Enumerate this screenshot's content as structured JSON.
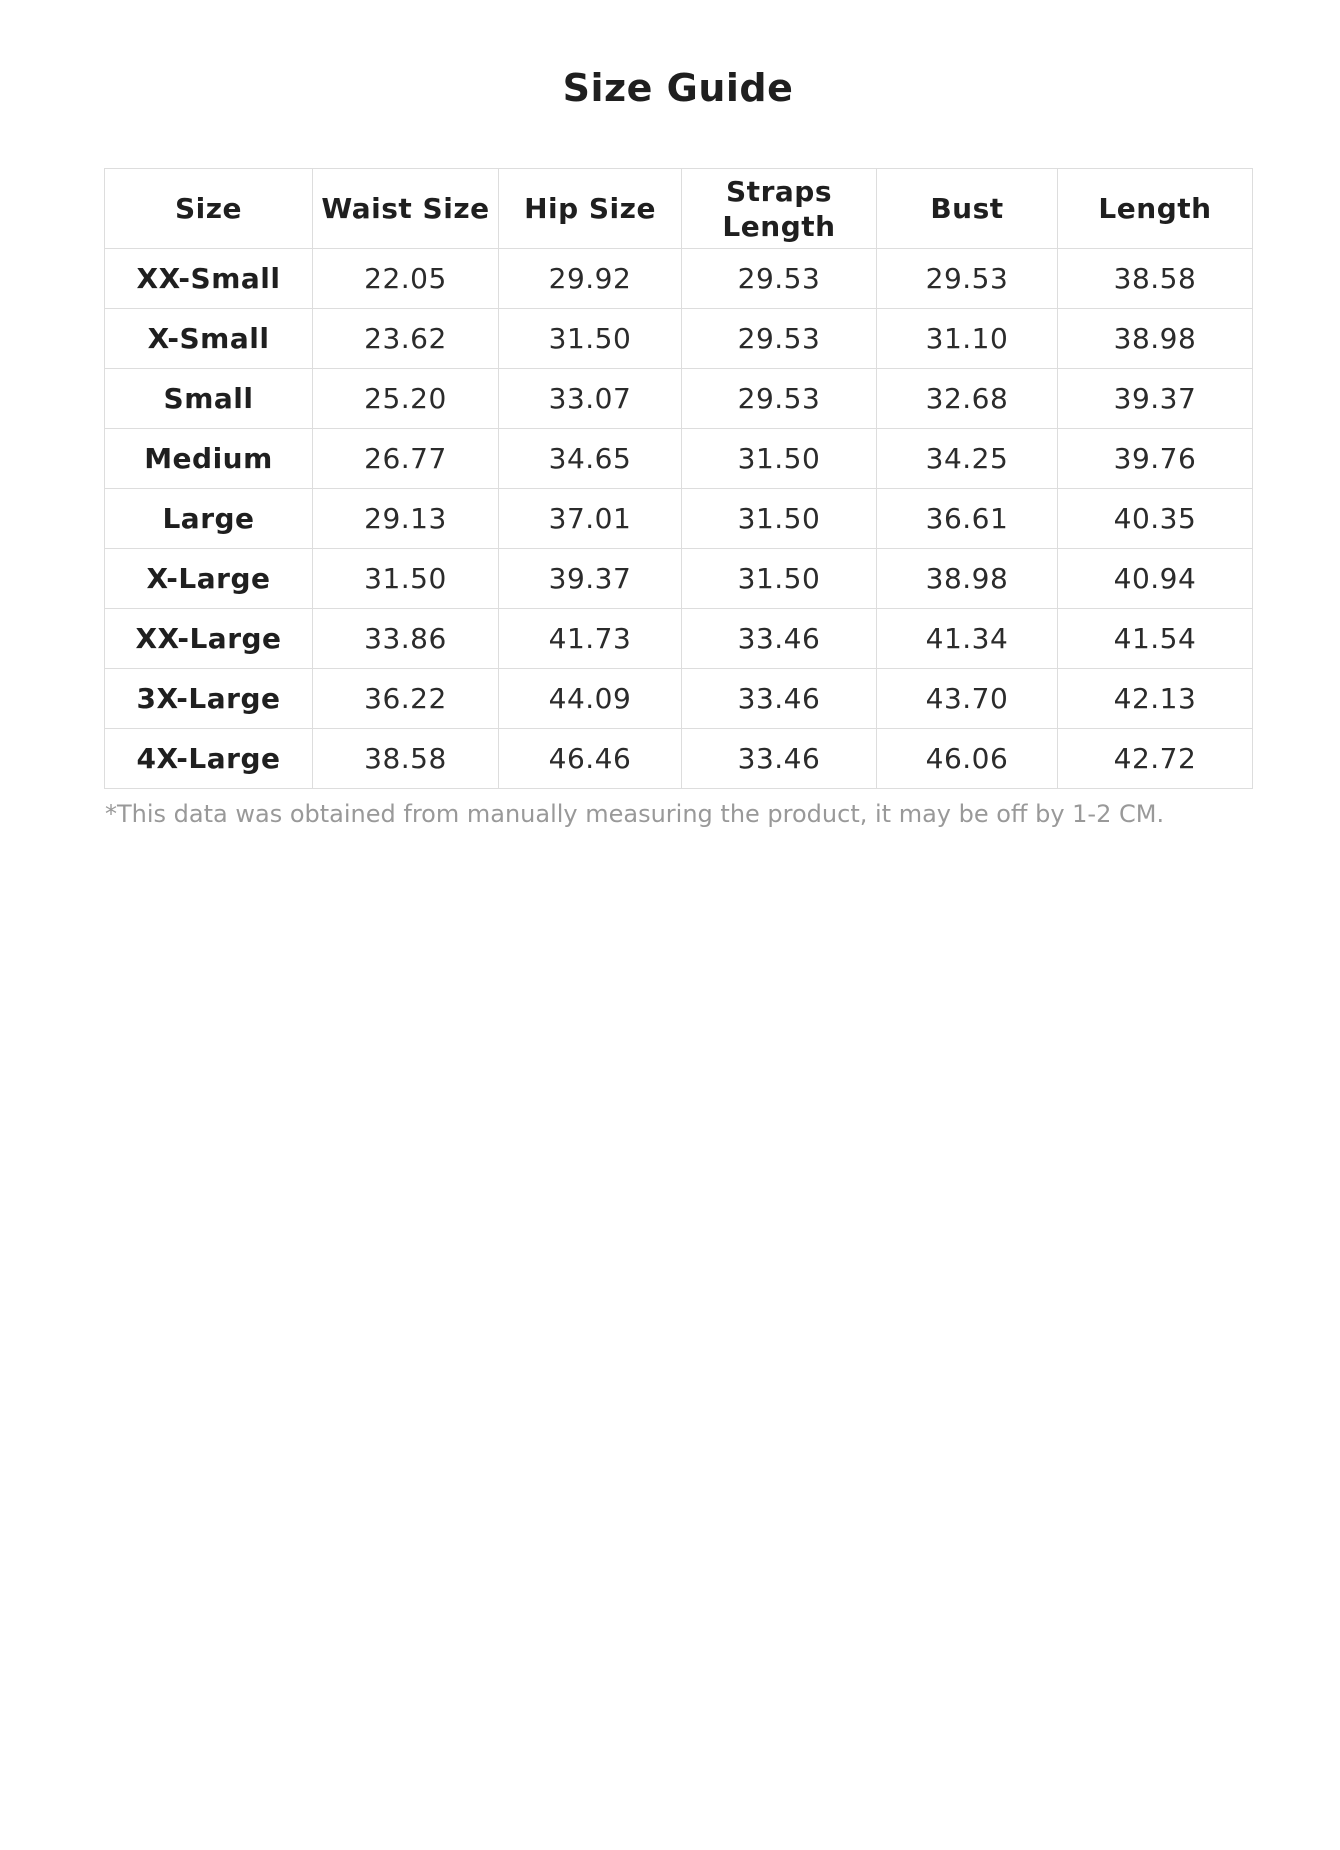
{
  "title": "Size Guide",
  "footnote": "*This data was obtained from manually measuring the product, it may be off by 1-2 CM.",
  "colors": {
    "text": "#1f1f1f",
    "body_text": "#2b2b2b",
    "muted_text": "#999999",
    "border": "#dddddd",
    "background": "#ffffff"
  },
  "chart_data": {
    "type": "table",
    "title": "Size Guide",
    "columns": [
      "Size",
      "Waist Size",
      "Hip Size",
      "Straps Length",
      "Bust",
      "Length"
    ],
    "rows": [
      [
        "XX-Small",
        "22.05",
        "29.92",
        "29.53",
        "29.53",
        "38.58"
      ],
      [
        "X-Small",
        "23.62",
        "31.50",
        "29.53",
        "31.10",
        "38.98"
      ],
      [
        "Small",
        "25.20",
        "33.07",
        "29.53",
        "32.68",
        "39.37"
      ],
      [
        "Medium",
        "26.77",
        "34.65",
        "31.50",
        "34.25",
        "39.76"
      ],
      [
        "Large",
        "29.13",
        "37.01",
        "31.50",
        "36.61",
        "40.35"
      ],
      [
        "X-Large",
        "31.50",
        "39.37",
        "31.50",
        "38.98",
        "40.94"
      ],
      [
        "XX-Large",
        "33.86",
        "41.73",
        "33.46",
        "41.34",
        "41.54"
      ],
      [
        "3X-Large",
        "36.22",
        "44.09",
        "33.46",
        "43.70",
        "42.13"
      ],
      [
        "4X-Large",
        "38.58",
        "46.46",
        "33.46",
        "46.06",
        "42.72"
      ]
    ],
    "footnote": "*This data was obtained from manually measuring the product, it may be off by 1-2 CM.",
    "layout": {
      "grid": true,
      "header_position": "top",
      "first_column_role": "row-header"
    }
  }
}
